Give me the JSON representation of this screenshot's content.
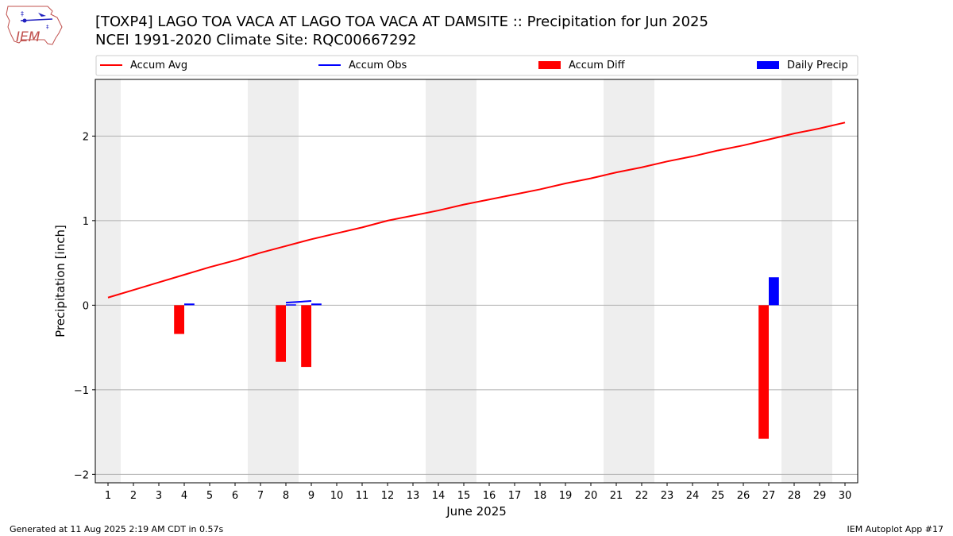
{
  "logo_text": "IEM",
  "title_line1": "[TOXP4] LAGO TOA VACA  AT LAGO TOA VACA AT DAMSITE :: Precipitation for Jun 2025",
  "title_line2": "NCEI 1991-2020 Climate Site: RQC00667292",
  "footer_left": "Generated at 11 Aug 2025 2:19 AM CDT in 0.57s",
  "footer_right": "IEM Autoplot App #17",
  "colors": {
    "accum_avg": "#ff0000",
    "accum_obs": "#0000ff",
    "accum_diff": "#ff0000",
    "daily_precip": "#0000ff",
    "weekend_shade": "#eeeeee",
    "grid": "#b0b0b0"
  },
  "chart_data": {
    "type": "bar",
    "xlabel": "June 2025",
    "ylabel": "Precipitation [inch]",
    "xlim": [
      0.5,
      30.5
    ],
    "ylim": [
      -2.1,
      2.67
    ],
    "x_ticks": [
      1,
      2,
      3,
      4,
      5,
      6,
      7,
      8,
      9,
      10,
      11,
      12,
      13,
      14,
      15,
      16,
      17,
      18,
      19,
      20,
      21,
      22,
      23,
      24,
      25,
      26,
      27,
      28,
      29,
      30
    ],
    "y_ticks": [
      -2,
      -1,
      0,
      1,
      2
    ],
    "y_tick_labels": [
      "−2",
      "−1",
      "0",
      "1",
      "2"
    ],
    "grid": "horizontal",
    "legend_position": "top",
    "legend": [
      {
        "label": "Accum Avg",
        "kind": "line",
        "color": "#ff0000"
      },
      {
        "label": "Accum Obs",
        "kind": "line",
        "color": "#0000ff"
      },
      {
        "label": "Accum Diff",
        "kind": "bar",
        "color": "#ff0000"
      },
      {
        "label": "Daily Precip",
        "kind": "bar",
        "color": "#0000ff"
      }
    ],
    "weekend_shading": [
      [
        0.5,
        1.5
      ],
      [
        6.5,
        8.5
      ],
      [
        13.5,
        15.5
      ],
      [
        20.5,
        22.5
      ],
      [
        27.5,
        29.5
      ]
    ],
    "series": [
      {
        "name": "Accum Avg",
        "type": "line",
        "x": [
          1,
          2,
          3,
          4,
          5,
          6,
          7,
          8,
          9,
          10,
          11,
          12,
          13,
          14,
          15,
          16,
          17,
          18,
          19,
          20,
          21,
          22,
          23,
          24,
          25,
          26,
          27,
          28,
          29,
          30
        ],
        "values": [
          0.09,
          0.18,
          0.27,
          0.36,
          0.45,
          0.53,
          0.62,
          0.7,
          0.78,
          0.85,
          0.92,
          1.0,
          1.06,
          1.12,
          1.19,
          1.25,
          1.31,
          1.37,
          1.44,
          1.5,
          1.57,
          1.63,
          1.7,
          1.76,
          1.83,
          1.89,
          1.96,
          2.03,
          2.09,
          2.16
        ]
      },
      {
        "name": "Accum Obs",
        "type": "line",
        "segments": [
          {
            "x": [
              8,
              9
            ],
            "values": [
              0.03,
              0.05
            ]
          }
        ]
      },
      {
        "name": "Accum Diff",
        "type": "bar",
        "x": [
          4,
          8,
          9,
          27
        ],
        "values": [
          -0.34,
          -0.67,
          -0.73,
          -1.58
        ]
      },
      {
        "name": "Daily Precip",
        "type": "bar",
        "x": [
          4,
          8,
          9,
          27
        ],
        "values": [
          0.02,
          0.01,
          0.02,
          0.33
        ]
      }
    ]
  }
}
